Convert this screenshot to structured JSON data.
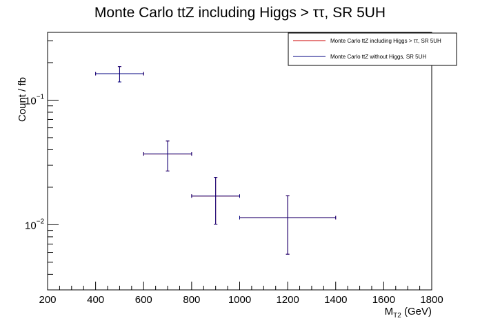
{
  "chart_data": {
    "type": "scatter",
    "title": "Monte Carlo ttZ including Higgs > ττ, SR 5UH",
    "xlabel": "M",
    "xlabel_sub": "T2",
    "xlabel_unit": " (GeV)",
    "ylabel": "Count / fb",
    "xlim": [
      200,
      1800
    ],
    "ylim": [
      0.003,
      0.35
    ],
    "yscale": "log",
    "x_ticks": [
      200,
      400,
      600,
      800,
      1000,
      1200,
      1400,
      1600,
      1800
    ],
    "y_major_ticks": [
      {
        "value": 0.1,
        "base": "10",
        "exp": "−1"
      },
      {
        "value": 0.01,
        "base": "10",
        "exp": "−2"
      }
    ],
    "grid": false,
    "legend_position": "top-right",
    "series": [
      {
        "name": "Monte Carlo ttZ including Higgs > ττ, SR 5UH",
        "color": "#cc0000",
        "points": [
          {
            "x": 500,
            "xlo": 400,
            "xhi": 600,
            "y": 0.163,
            "ylo": 0.14,
            "yhi": 0.186
          },
          {
            "x": 700,
            "xlo": 600,
            "xhi": 800,
            "y": 0.037,
            "ylo": 0.027,
            "yhi": 0.047
          },
          {
            "x": 900,
            "xlo": 800,
            "xhi": 1000,
            "y": 0.017,
            "ylo": 0.0101,
            "yhi": 0.024
          },
          {
            "x": 1200,
            "xlo": 1000,
            "xhi": 1400,
            "y": 0.0114,
            "ylo": 0.0058,
            "yhi": 0.0171
          }
        ]
      },
      {
        "name": "Monte Carlo ttZ without Higgs, SR 5UH",
        "color": "#000080",
        "points": [
          {
            "x": 500,
            "xlo": 400,
            "xhi": 600,
            "y": 0.163,
            "ylo": 0.14,
            "yhi": 0.186
          },
          {
            "x": 700,
            "xlo": 600,
            "xhi": 800,
            "y": 0.037,
            "ylo": 0.027,
            "yhi": 0.047
          },
          {
            "x": 900,
            "xlo": 800,
            "xhi": 1000,
            "y": 0.017,
            "ylo": 0.0101,
            "yhi": 0.024
          },
          {
            "x": 1200,
            "xlo": 1000,
            "xhi": 1400,
            "y": 0.0114,
            "ylo": 0.0058,
            "yhi": 0.0171
          }
        ]
      }
    ]
  }
}
